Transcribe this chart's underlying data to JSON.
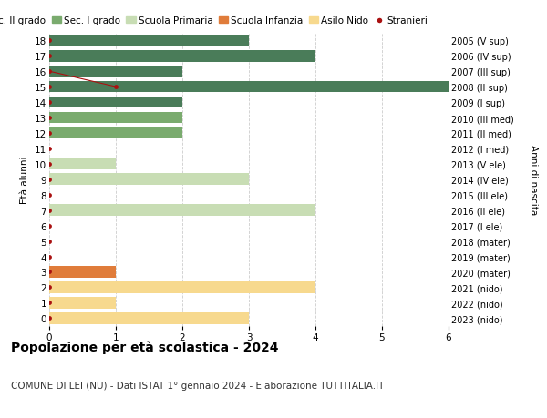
{
  "ages": [
    18,
    17,
    16,
    15,
    14,
    13,
    12,
    11,
    10,
    9,
    8,
    7,
    6,
    5,
    4,
    3,
    2,
    1,
    0
  ],
  "right_labels": [
    "2005 (V sup)",
    "2006 (IV sup)",
    "2007 (III sup)",
    "2008 (II sup)",
    "2009 (I sup)",
    "2010 (III med)",
    "2011 (II med)",
    "2012 (I med)",
    "2013 (V ele)",
    "2014 (IV ele)",
    "2015 (III ele)",
    "2016 (II ele)",
    "2017 (I ele)",
    "2018 (mater)",
    "2019 (mater)",
    "2020 (mater)",
    "2021 (nido)",
    "2022 (nido)",
    "2023 (nido)"
  ],
  "bar_values": [
    3,
    4,
    2,
    6,
    2,
    2,
    2,
    0,
    1,
    3,
    0,
    4,
    0,
    0,
    0,
    1,
    4,
    1,
    3
  ],
  "bar_colors": [
    "#4a7c59",
    "#4a7c59",
    "#4a7c59",
    "#4a7c59",
    "#4a7c59",
    "#7aab6e",
    "#7aab6e",
    "#7aab6e",
    "#c8ddb4",
    "#c8ddb4",
    "#c8ddb4",
    "#c8ddb4",
    "#c8ddb4",
    "#e07c3a",
    "#e07c3a",
    "#e07c3a",
    "#f7d98e",
    "#f7d98e",
    "#f7d98e"
  ],
  "stranieri_color": "#aa1111",
  "legend_items": [
    {
      "label": "Sec. II grado",
      "color": "#4a7c59",
      "dot": false
    },
    {
      "label": "Sec. I grado",
      "color": "#7aab6e",
      "dot": false
    },
    {
      "label": "Scuola Primaria",
      "color": "#c8ddb4",
      "dot": false
    },
    {
      "label": "Scuola Infanzia",
      "color": "#e07c3a",
      "dot": false
    },
    {
      "label": "Asilo Nido",
      "color": "#f7d98e",
      "dot": false
    },
    {
      "label": "Stranieri",
      "color": "#aa1111",
      "dot": true
    }
  ],
  "ylabel": "Età alunni",
  "right_ylabel": "Anni di nascita",
  "xlim": [
    0,
    6
  ],
  "title": "Popolazione per età scolastica - 2024",
  "subtitle": "COMUNE DI LEI (NU) - Dati ISTAT 1° gennaio 2024 - Elaborazione TUTTITALIA.IT",
  "bg_color": "#ffffff",
  "grid_color": "#cccccc",
  "bar_height": 0.75,
  "title_fontsize": 10,
  "subtitle_fontsize": 7.5,
  "axis_fontsize": 7.5,
  "legend_fontsize": 7.5
}
